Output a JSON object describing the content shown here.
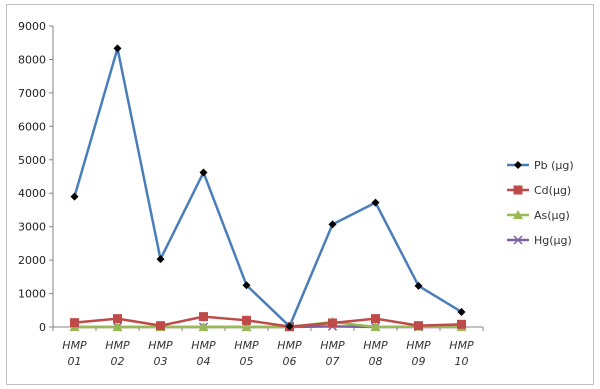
{
  "chart_data": {
    "type": "line",
    "categories": [
      "HMP 01",
      "HMP 02",
      "HMP 03",
      "HMP 04",
      "HMP 05",
      "HMP 06",
      "HMP 07",
      "HMP 08",
      "HMP 09",
      "HMP 10"
    ],
    "ylim": [
      0,
      9000
    ],
    "yticks": [
      0,
      1000,
      2000,
      3000,
      4000,
      5000,
      6000,
      7000,
      8000,
      9000
    ],
    "grid": false,
    "legend_position": "right",
    "series": [
      {
        "name": "Pb (µg)",
        "color": "#4a7ebb",
        "marker": "diamond",
        "marker_color": "#000000",
        "values": [
          3900,
          8330,
          2030,
          4620,
          1250,
          20,
          3070,
          3720,
          1230,
          450
        ]
      },
      {
        "name": "Cd(µg)",
        "color": "#be4b48",
        "marker": "square",
        "marker_color": "#be4b48",
        "values": [
          130,
          250,
          40,
          310,
          200,
          10,
          120,
          250,
          40,
          80
        ]
      },
      {
        "name": "As(µg)",
        "color": "#98b954",
        "marker": "triangle",
        "marker_color": "#98b954",
        "values": [
          0,
          0,
          0,
          0,
          0,
          0,
          150,
          0,
          10,
          0
        ]
      },
      {
        "name": "Hg(µg)",
        "color": "#7d60a0",
        "marker": "x",
        "marker_color": "#7d60a0",
        "values": [
          0,
          0,
          0,
          0,
          0,
          0,
          20,
          0,
          0,
          0
        ]
      }
    ]
  }
}
